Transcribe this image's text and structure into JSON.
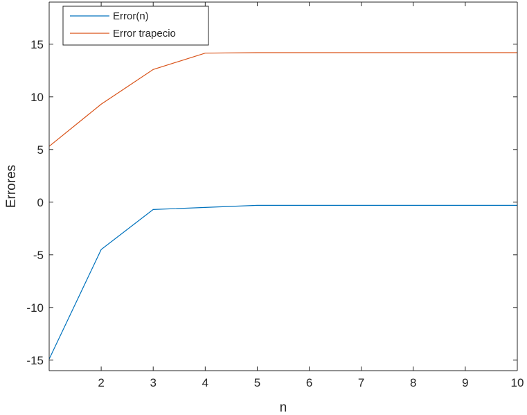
{
  "chart_data": {
    "type": "line",
    "title": "",
    "xlabel": "n",
    "ylabel": "Errores",
    "xlim": [
      1,
      10
    ],
    "ylim": [
      -16,
      19
    ],
    "xticks": [
      2,
      3,
      4,
      5,
      6,
      7,
      8,
      9,
      10
    ],
    "yticks": [
      -15,
      -10,
      -5,
      0,
      5,
      10,
      15
    ],
    "xtick_labels": [
      "2",
      "3",
      "4",
      "5",
      "6",
      "7",
      "8",
      "9",
      "10"
    ],
    "ytick_labels": [
      "-15",
      "-10",
      "-5",
      "0",
      "5",
      "10",
      "15"
    ],
    "grid": false,
    "legend_position": "top-left",
    "x": [
      1,
      2,
      3,
      4,
      5,
      6,
      7,
      8,
      9,
      10
    ],
    "series": [
      {
        "name": "Error(n)",
        "color": "#0072BD",
        "values": [
          -14.9,
          -4.5,
          -0.7,
          -0.5,
          -0.3,
          -0.3,
          -0.3,
          -0.3,
          -0.3,
          -0.3
        ]
      },
      {
        "name": "Error trapecio",
        "color": "#D95319",
        "values": [
          5.3,
          9.3,
          12.6,
          14.15,
          14.2,
          14.2,
          14.2,
          14.2,
          14.2,
          14.2
        ]
      }
    ]
  }
}
